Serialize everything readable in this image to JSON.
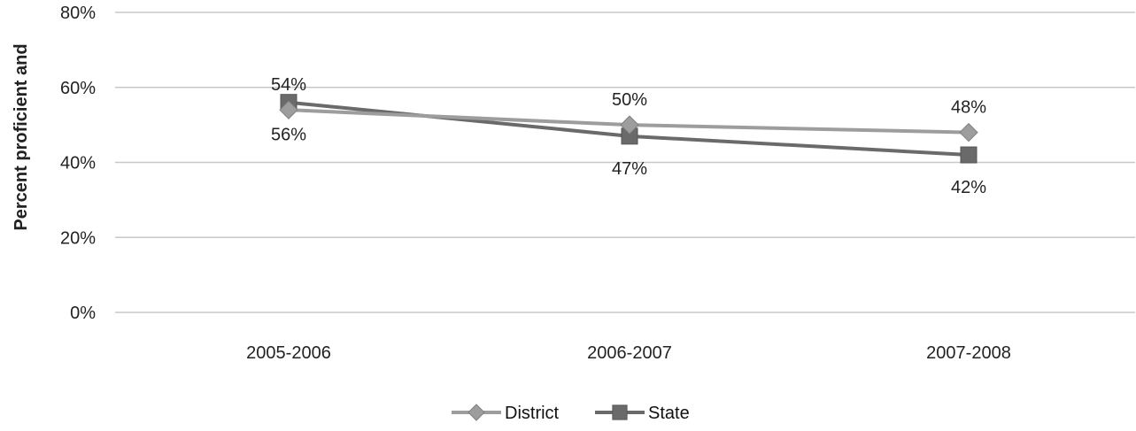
{
  "chart_data": {
    "type": "line",
    "ylabel": "Percent  proficient and",
    "categories": [
      "2005-2006",
      "2006-2007",
      "2007-2008"
    ],
    "y_ticks": [
      "0%",
      "20%",
      "40%",
      "60%",
      "80%"
    ],
    "ylim": [
      0,
      80
    ],
    "grid": true,
    "legend_position": "bottom",
    "series": [
      {
        "name": "District",
        "marker": "diamond",
        "color": "#9d9d9d",
        "values": [
          54,
          50,
          48
        ],
        "labels": [
          "54%",
          "50%",
          "48%"
        ]
      },
      {
        "name": "State",
        "marker": "square",
        "color": "#6a6a6a",
        "values": [
          56,
          47,
          42
        ],
        "labels": [
          "56%",
          "47%",
          "42%"
        ]
      }
    ]
  }
}
